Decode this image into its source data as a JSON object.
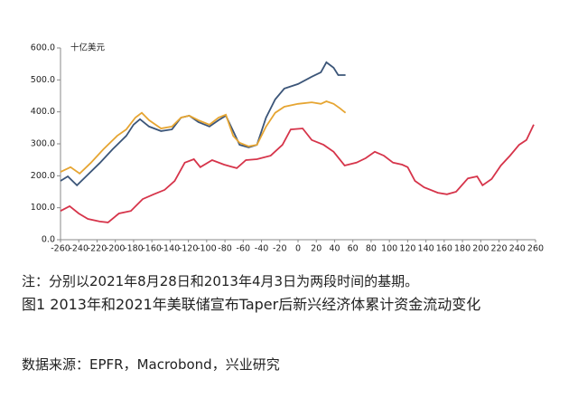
{
  "chart_data": {
    "type": "line",
    "unit_label": "十亿美元",
    "xlim": [
      -260,
      260
    ],
    "xticks": [
      -260,
      -240,
      -220,
      -200,
      -180,
      -160,
      -140,
      -120,
      -100,
      -80,
      -60,
      -40,
      -20,
      0,
      20,
      40,
      60,
      80,
      100,
      120,
      140,
      160,
      180,
      200,
      220,
      240,
      260
    ],
    "ylim": [
      0,
      600
    ],
    "yticks": [
      {
        "value": 0,
        "label": "0.0"
      },
      {
        "value": 100,
        "label": "100.0"
      },
      {
        "value": 200,
        "label": "200.0"
      },
      {
        "value": 300,
        "label": "300.0"
      },
      {
        "value": 400,
        "label": "400.0"
      },
      {
        "value": 500,
        "label": "500.0"
      },
      {
        "value": 600,
        "label": "600.0"
      }
    ],
    "series": [
      {
        "color": "#3b5578",
        "x": [
          -260,
          -252,
          -242,
          -232,
          -217,
          -203,
          -188,
          -180,
          -173,
          -163,
          -150,
          -138,
          -128,
          -119,
          -109,
          -97,
          -87,
          -79,
          -71,
          -64,
          -54,
          -45,
          -35,
          -25,
          -15,
          0,
          15,
          25,
          31,
          39,
          44,
          52
        ],
        "values": [
          184,
          198,
          170,
          198,
          240,
          283,
          325,
          360,
          377,
          354,
          340,
          345,
          382,
          388,
          368,
          354,
          374,
          388,
          340,
          297,
          289,
          297,
          382,
          439,
          473,
          487,
          510,
          524,
          555,
          538,
          515,
          515
        ]
      },
      {
        "color": "#e6a532",
        "x": [
          -260,
          -249,
          -239,
          -227,
          -213,
          -198,
          -188,
          -178,
          -171,
          -163,
          -150,
          -138,
          -128,
          -119,
          -109,
          -97,
          -87,
          -79,
          -71,
          -64,
          -54,
          -45,
          -35,
          -25,
          -15,
          0,
          15,
          25,
          31,
          39,
          46,
          52
        ],
        "values": [
          212,
          227,
          207,
          240,
          283,
          325,
          345,
          382,
          397,
          374,
          348,
          354,
          382,
          388,
          374,
          360,
          382,
          391,
          325,
          303,
          292,
          297,
          354,
          397,
          416,
          425,
          430,
          425,
          433,
          425,
          411,
          397
        ]
      },
      {
        "color": "#d6344a",
        "x": [
          -260,
          -250,
          -240,
          -230,
          -217,
          -208,
          -196,
          -183,
          -170,
          -158,
          -146,
          -135,
          -124,
          -114,
          -107,
          -94,
          -81,
          -67,
          -57,
          -45,
          -30,
          -17,
          -8,
          5,
          15,
          28,
          39,
          51,
          64,
          74,
          84,
          94,
          104,
          114,
          120,
          128,
          138,
          153,
          163,
          173,
          186,
          196,
          202,
          212,
          222,
          232,
          242,
          250,
          258
        ],
        "values": [
          90,
          105,
          82,
          65,
          57,
          54,
          82,
          90,
          127,
          142,
          156,
          184,
          241,
          252,
          227,
          249,
          235,
          224,
          249,
          252,
          263,
          297,
          345,
          348,
          312,
          297,
          275,
          232,
          241,
          255,
          275,
          263,
          241,
          235,
          227,
          184,
          164,
          147,
          142,
          150,
          192,
          198,
          170,
          190,
          232,
          263,
          297,
          312,
          360
        ]
      }
    ]
  },
  "notes": {
    "note": "注：分别以2021年8月28日和2013年4月3日为两段时间的基期。",
    "caption": "图1  2013年和2021年美联储宣布Taper后新兴经济体累计资金流动变化",
    "source": "数据来源：EPFR，Macrobond，兴业研究"
  }
}
